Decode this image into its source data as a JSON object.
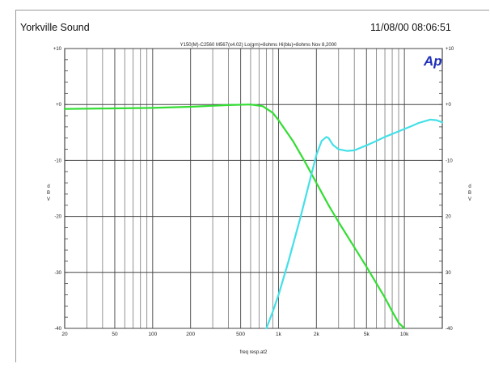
{
  "header": {
    "company": "Yorkville Sound",
    "datetime": "11/08/00 08:06:51"
  },
  "chart_data": {
    "type": "line",
    "title": "Y150(M)-C2560  M567(x4.02) Lo(grn)=8ohms Hi(blu)=8ohms Nov 8,2000",
    "logo": "Ap",
    "xlabel": "freq resp.at2",
    "ylabel_left": "d B V",
    "ylabel_right": "d B V",
    "x_scale": "log",
    "xlim": [
      20,
      20000
    ],
    "ylim": [
      -40,
      10
    ],
    "x_ticks": [
      {
        "value": 20,
        "label": "20"
      },
      {
        "value": 50,
        "label": "50"
      },
      {
        "value": 100,
        "label": "100"
      },
      {
        "value": 200,
        "label": "200"
      },
      {
        "value": 500,
        "label": "500"
      },
      {
        "value": 1000,
        "label": "1k"
      },
      {
        "value": 2000,
        "label": "2k"
      },
      {
        "value": 5000,
        "label": "5k"
      },
      {
        "value": 10000,
        "label": "10k"
      }
    ],
    "y_ticks": [
      {
        "value": 10,
        "label": "+10"
      },
      {
        "value": 0,
        "label": "+0"
      },
      {
        "value": -10,
        "label": "-10"
      },
      {
        "value": -20,
        "label": "-20"
      },
      {
        "value": -30,
        "label": "-30"
      },
      {
        "value": -40,
        "label": "-40"
      }
    ],
    "y_ticks_right": [
      {
        "value": 10,
        "label": "+10"
      },
      {
        "value": 0,
        "label": "+0"
      },
      {
        "value": -10,
        "label": "-10"
      },
      {
        "value": -20,
        "label": "20"
      },
      {
        "value": -30,
        "label": "30"
      },
      {
        "value": -40,
        "label": "-40"
      }
    ],
    "grid": true,
    "series": [
      {
        "color": "#33dd33",
        "x": [
          20,
          50,
          100,
          200,
          400,
          600,
          750,
          900,
          1000,
          1300,
          1600,
          2000,
          2500,
          3000,
          4000,
          5000,
          6000,
          7000,
          8000,
          9000,
          10000
        ],
        "y": [
          -0.8,
          -0.7,
          -0.6,
          -0.4,
          -0.1,
          0,
          -0.3,
          -1.5,
          -2.8,
          -6.5,
          -10,
          -14,
          -18,
          -21,
          -25.5,
          -29,
          -32,
          -34.5,
          -37,
          -39,
          -40
        ]
      },
      {
        "color": "#44e0e8",
        "x": [
          800,
          900,
          1000,
          1200,
          1500,
          1800,
          2000,
          2200,
          2400,
          2500,
          2700,
          3000,
          3500,
          4000,
          5000,
          6000,
          7000,
          9000,
          11000,
          13000,
          16000,
          18000,
          20000
        ],
        "y": [
          -40,
          -37,
          -34,
          -28,
          -20,
          -13,
          -9,
          -6.5,
          -5.8,
          -6,
          -7.2,
          -8,
          -8.3,
          -8.2,
          -7.3,
          -6.5,
          -5.8,
          -4.8,
          -4,
          -3.3,
          -2.7,
          -2.8,
          -3.2
        ]
      }
    ]
  }
}
